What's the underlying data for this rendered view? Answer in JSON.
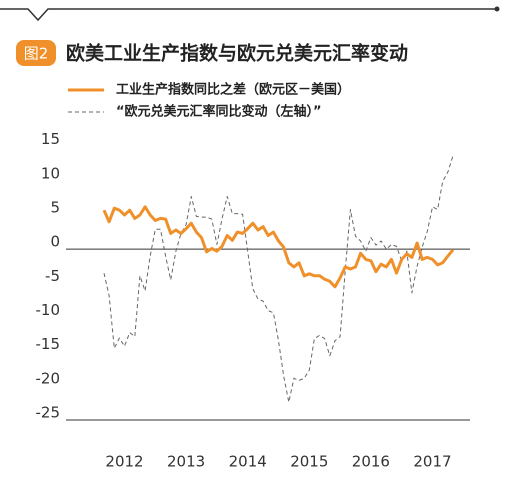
{
  "chart_data": {
    "type": "line",
    "badge": "图2",
    "title": "欧美工业生产指数与欧元兑美元汇率变动",
    "categories": [
      null,
      null,
      null,
      null,
      "2012",
      null,
      null,
      null,
      null,
      null,
      null,
      null,
      null,
      null,
      null,
      null,
      "2013",
      null,
      null,
      null,
      null,
      null,
      null,
      null,
      null,
      null,
      null,
      null,
      "2014",
      null,
      null,
      null,
      null,
      null,
      null,
      null,
      null,
      null,
      null,
      null,
      "2015",
      null,
      null,
      null,
      null,
      null,
      null,
      null,
      null,
      null,
      null,
      null,
      "2016",
      null,
      null,
      null,
      null,
      null,
      null,
      null,
      null,
      null,
      null,
      null,
      "2017",
      null,
      null,
      null,
      null
    ],
    "series": [
      {
        "name": "工业生产指数同比之差（欧元区－美国）",
        "color": "#f0902a",
        "dashed": false,
        "values": [
          5.7,
          4,
          6,
          5.7,
          5,
          5.7,
          4.5,
          5,
          6.2,
          5,
          4.2,
          4.5,
          4.4,
          2.3,
          2.8,
          2.3,
          3,
          3.8,
          2.5,
          1.7,
          -0.4,
          0.1,
          -0.3,
          0.4,
          2,
          1.3,
          2.5,
          2.3,
          3,
          3.8,
          2.8,
          3.3,
          2,
          2.5,
          1.2,
          0.3,
          -2,
          -2.6,
          -2,
          -3.9,
          -3.6,
          -3.9,
          -3.9,
          -4.4,
          -4.7,
          -5.5,
          -4.2,
          -2.6,
          -2.9,
          -2.6,
          -0.6,
          -1.5,
          -1.7,
          -3.3,
          -2.2,
          -2.6,
          -1.5,
          -3.5,
          -1.5,
          -0.7,
          -1.2,
          0.9,
          -1.5,
          -1.2,
          -1.5,
          -2.3,
          -2,
          -1,
          -0.1
        ]
      },
      {
        "name": "“欧元兑美元汇率同比变动（左轴）”",
        "color": "#666666",
        "dashed": true,
        "values": [
          -3.5,
          -6.8,
          -14.5,
          -13,
          -14.2,
          -12.2,
          -12.8,
          -3.9,
          -6.1,
          -1,
          2.9,
          2.9,
          -1,
          -4.5,
          -0.3,
          2.3,
          3.6,
          7.7,
          4.8,
          4.7,
          4.7,
          4.4,
          0.7,
          4.4,
          7.7,
          5.2,
          5.2,
          5.1,
          -0.3,
          -5.8,
          -7.3,
          -7.6,
          -9,
          -9.3,
          -13.4,
          -18.5,
          -22.4,
          -18.9,
          -19.2,
          -18.9,
          -17.7,
          -13.1,
          -12.6,
          -13.1,
          -15.6,
          -13.4,
          -12.8,
          -3.2,
          5.8,
          1.9,
          1.2,
          -0.3,
          1.7,
          0.6,
          1.2,
          0,
          0.7,
          0.4,
          -1.7,
          -0.3,
          -6.4,
          -2.5,
          0.3,
          2.6,
          6.2,
          5.8,
          9.9,
          11.3,
          13.7
        ]
      }
    ],
    "ylim": [
      -25,
      17
    ],
    "yticks": [
      15,
      10,
      5,
      0,
      -5,
      -10,
      -15,
      -20,
      -25
    ],
    "zero_line": true
  }
}
